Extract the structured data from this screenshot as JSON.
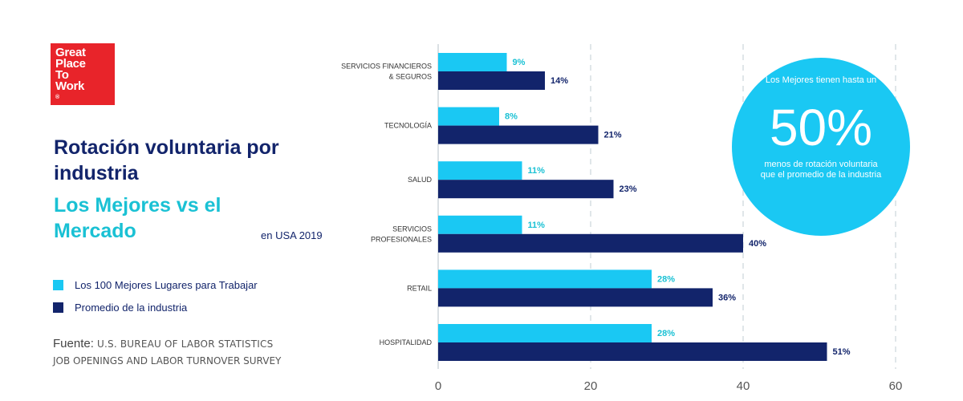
{
  "logo": {
    "line1": "Great",
    "line2": "Place",
    "line3": "To",
    "line4": "Work",
    "reg": "®"
  },
  "heading": {
    "title_line1": "Rotación voluntaria por",
    "title_line2": "industria",
    "subtitle_line1": "Los Mejores vs el",
    "subtitle_line2": "Mercado",
    "region": "en USA 2019"
  },
  "legend": [
    {
      "label": "Los 100 Mejores Lugares para Trabajar",
      "color": "#1ac8f3"
    },
    {
      "label": "Promedio de la industria",
      "color": "#12246b"
    }
  ],
  "source": {
    "label": "Fuente:",
    "line1": "U.S. BUREAU OF LABOR STATISTICS",
    "line2": "JOB OPENINGS AND LABOR TURNOVER SURVEY"
  },
  "callout": {
    "top": "Los Mejores tienen hasta un",
    "big": "50%",
    "bottom": "menos de rotación voluntaria que el promedio de la industria",
    "color": "#1ac8f3"
  },
  "chart_data": {
    "type": "bar",
    "orientation": "horizontal",
    "categories": [
      [
        "SERVICIOS FINANCIEROS",
        "& SEGUROS"
      ],
      [
        "TECNOLOGÍA"
      ],
      [
        "SALUD"
      ],
      [
        "SERVICIOS",
        "PROFESIONALES"
      ],
      [
        "RETAIL"
      ],
      [
        "HOSPITALIDAD"
      ]
    ],
    "series": [
      {
        "name": "Los 100 Mejores Lugares para Trabajar",
        "color": "#1ac8f3",
        "values": [
          9,
          8,
          11,
          11,
          28,
          28
        ],
        "labels": [
          "9%",
          "8%",
          "11%",
          "11%",
          "28%",
          "28%"
        ]
      },
      {
        "name": "Promedio de la industria",
        "color": "#12246b",
        "values": [
          14,
          21,
          23,
          40,
          36,
          51
        ],
        "labels": [
          "14%",
          "21%",
          "23%",
          "40%",
          "36%",
          "51%"
        ]
      }
    ],
    "xlim": [
      0,
      60
    ],
    "xticks": [
      0,
      20,
      40,
      60
    ],
    "xtick_labels": [
      "0",
      "20",
      "40",
      "60"
    ],
    "grid": true
  }
}
